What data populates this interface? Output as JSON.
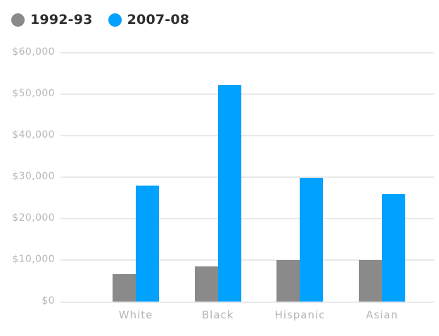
{
  "colors": {
    "background": "#ffffff",
    "grid": "#e9e9e9",
    "axis_text": "#b7b7b7",
    "legend_text": "#2d2d2d",
    "series_gray": "#8a8a8a",
    "series_blue": "#00a1ff"
  },
  "chart_data": {
    "type": "bar",
    "title": "",
    "xlabel": "",
    "ylabel": "",
    "categories": [
      "White",
      "Black",
      "Hispanic",
      "Asian"
    ],
    "series": [
      {
        "name": "1992-93",
        "color": "#8a8a8a",
        "values": [
          6600,
          8500,
          10000,
          10000
        ]
      },
      {
        "name": "2007-08",
        "color": "#00a1ff",
        "values": [
          28000,
          52200,
          29800,
          26000
        ]
      }
    ],
    "ylim": [
      0,
      60000
    ],
    "y_ticks": [
      {
        "value": 0,
        "label": "$0"
      },
      {
        "value": 10000,
        "label": "$10,000"
      },
      {
        "value": 20000,
        "label": "$20,000"
      },
      {
        "value": 30000,
        "label": "$30,000"
      },
      {
        "value": 40000,
        "label": "$40,000"
      },
      {
        "value": 50000,
        "label": "$50,000"
      },
      {
        "value": 60000,
        "label": "$60,000"
      }
    ],
    "grid": "horizontal",
    "legend_position": "top-left"
  }
}
